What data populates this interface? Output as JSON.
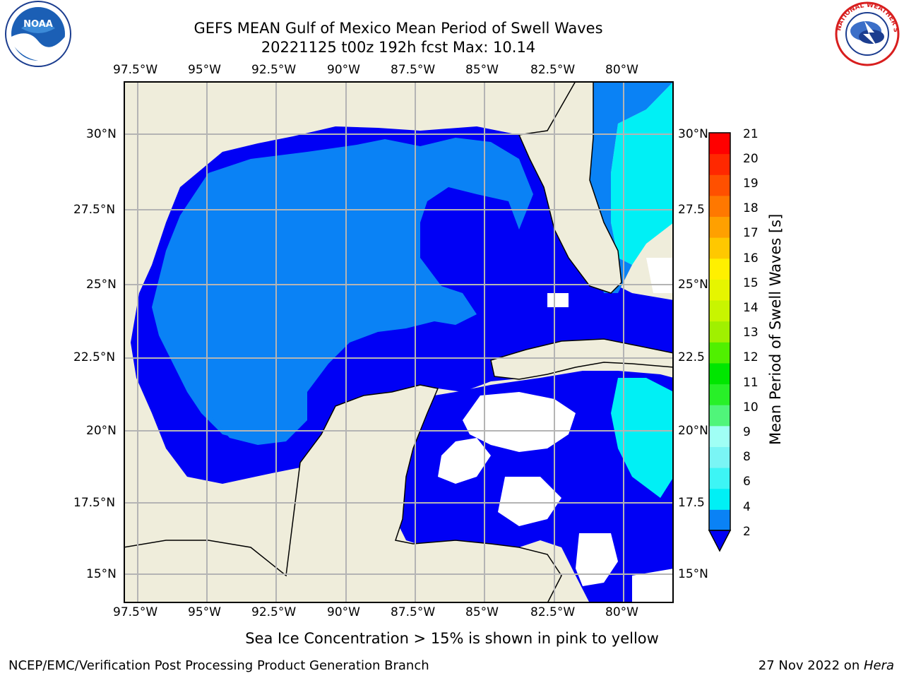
{
  "header": {
    "title": "GEFS MEAN Gulf of Mexico Mean Period of Swell Waves",
    "subtitle": "20221125 t00z 192h fcst   Max: 10.14"
  },
  "logos": {
    "left_name": "NOAA",
    "right_name": "NATIONAL WEATHER SERVICE"
  },
  "map": {
    "lon_labels_top": [
      "97.5°W",
      "95°W",
      "92.5°W",
      "90°W",
      "87.5°W",
      "85°W",
      "82.5°W",
      "80°W"
    ],
    "lon_labels_bottom": [
      "97.5°W",
      "95°W",
      "92.5°W",
      "90°W",
      "87.5°W",
      "85°W",
      "82.5°W",
      "80°W"
    ],
    "lat_labels_left": [
      "30°N",
      "27.5°N",
      "25°N",
      "22.5°N",
      "20°N",
      "17.5°N",
      "15°N"
    ],
    "lat_labels_right": [
      "30°N",
      "27.5",
      "25°N",
      "22.5",
      "20°N",
      "17.5",
      "15°N"
    ],
    "colors": {
      "land": "#efeddb",
      "water_2_4": "#0000f5",
      "water_4_6": "#0a82f5",
      "grid": "#b4b4b4"
    }
  },
  "colorbar": {
    "label": "Mean Period of Swell Waves [s]",
    "ticks": [
      "2",
      "4",
      "6",
      "8",
      "9",
      "10",
      "11",
      "12",
      "13",
      "14",
      "15",
      "16",
      "17",
      "18",
      "19",
      "20",
      "21"
    ],
    "colors": [
      "#0a82f5",
      "#00f0f5",
      "#3df5f5",
      "#7af5f5",
      "#a0fff5",
      "#50f57a",
      "#28f028",
      "#00e600",
      "#50f000",
      "#a0f000",
      "#c8f500",
      "#e6f500",
      "#fff000",
      "#ffc800",
      "#ffa000",
      "#ff7800",
      "#ff5000",
      "#ff2800",
      "#ff0000"
    ]
  },
  "notes": {
    "sea_ice": "Sea Ice Concentration > 15% is shown in pink to yellow"
  },
  "footer": {
    "left": "NCEP/EMC/Verification Post Processing Product Generation Branch",
    "date": "27 Nov 2022 on ",
    "machine": "Hera"
  }
}
